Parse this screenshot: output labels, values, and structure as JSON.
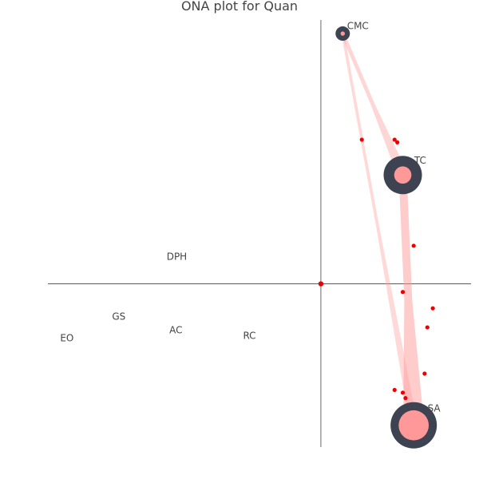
{
  "chart_data": {
    "type": "network",
    "title": "ONA plot for Quan",
    "xlim": [
      -1.0,
      0.55
    ],
    "ylim": [
      -0.6,
      0.97
    ],
    "axis_color": "#444444",
    "edge_color": "#ff9999",
    "node_outer_color": "#3d4350",
    "node_inner_color": "#ff9999",
    "point_color": "#ee0000",
    "centroid_color": "#ee0000",
    "nodes": [
      {
        "name": "CMC",
        "x": 0.08,
        "y": 0.92,
        "size": 1,
        "self_loop": 0.3
      },
      {
        "name": "TC",
        "x": 0.3,
        "y": 0.4,
        "size": 4,
        "self_loop": 0.45
      },
      {
        "name": "SA",
        "x": 0.34,
        "y": -0.52,
        "size": 5,
        "self_loop": 0.65
      },
      {
        "name": "DPH",
        "x": -0.53,
        "y": 0.1,
        "size": 0,
        "self_loop": 0
      },
      {
        "name": "GS",
        "x": -0.73,
        "y": -0.12,
        "size": 0,
        "self_loop": 0
      },
      {
        "name": "AC",
        "x": -0.52,
        "y": -0.17,
        "size": 0,
        "self_loop": 0
      },
      {
        "name": "RC",
        "x": -0.25,
        "y": -0.19,
        "size": 0,
        "self_loop": 0
      },
      {
        "name": "EO",
        "x": -0.92,
        "y": -0.2,
        "size": 0,
        "self_loop": 0
      }
    ],
    "edges": [
      {
        "from": "CMC",
        "to": "TC",
        "weight": 0.35
      },
      {
        "from": "CMC",
        "to": "SA",
        "weight": 0.2
      },
      {
        "from": "TC",
        "to": "SA",
        "weight": 1.0
      }
    ],
    "points": [
      {
        "x": 0.27,
        "y": 0.53
      },
      {
        "x": 0.28,
        "y": 0.52
      },
      {
        "x": 0.15,
        "y": 0.53
      },
      {
        "x": 0.34,
        "y": 0.14
      },
      {
        "x": 0.3,
        "y": -0.03
      },
      {
        "x": 0.41,
        "y": -0.09
      },
      {
        "x": 0.39,
        "y": -0.16
      },
      {
        "x": 0.38,
        "y": -0.33
      },
      {
        "x": 0.27,
        "y": -0.39
      },
      {
        "x": 0.3,
        "y": -0.4
      },
      {
        "x": 0.31,
        "y": -0.42
      }
    ],
    "centroid": {
      "x": 0.0,
      "y": 0.0
    }
  }
}
